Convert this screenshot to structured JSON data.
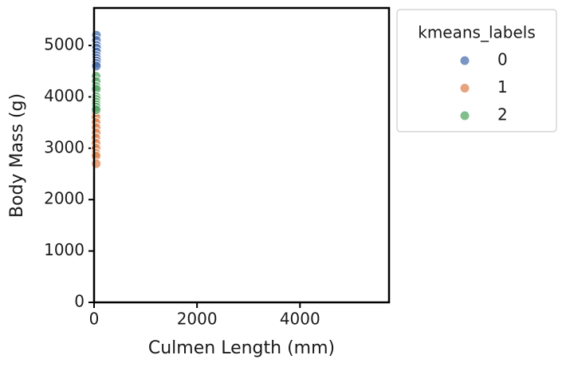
{
  "chart_data": {
    "type": "scatter",
    "xlabel": "Culmen Length (mm)",
    "ylabel": "Body Mass (g)",
    "xlim": [
      0,
      5730
    ],
    "ylim": [
      0,
      5730
    ],
    "xticks": [
      0,
      2000,
      4000
    ],
    "yticks": [
      0,
      1000,
      2000,
      3000,
      4000,
      5000
    ],
    "legend_title": "kmeans_labels",
    "legend_loc": "outside upper left",
    "series": [
      {
        "name": "0",
        "color": "#4c72b0",
        "x": [
          45,
          46,
          50,
          48,
          49,
          47,
          50,
          52,
          46,
          45
        ],
        "values": [
          5200,
          5100,
          5000,
          4950,
          4875,
          4800,
          4750,
          4700,
          4650,
          4600
        ]
      },
      {
        "name": "1",
        "color": "#dd8452",
        "x": [
          36,
          37,
          38,
          39,
          40,
          35,
          37,
          38,
          36,
          39,
          41
        ],
        "values": [
          3700,
          3600,
          3500,
          3400,
          3300,
          3200,
          3100,
          3000,
          2900,
          2850,
          2700
        ]
      },
      {
        "name": "2",
        "color": "#55a868",
        "x": [
          39,
          40,
          41,
          42,
          43,
          44,
          38,
          39,
          41,
          40
        ],
        "values": [
          4400,
          4300,
          4200,
          4150,
          4000,
          3950,
          3900,
          3850,
          3800,
          3750
        ]
      }
    ]
  }
}
